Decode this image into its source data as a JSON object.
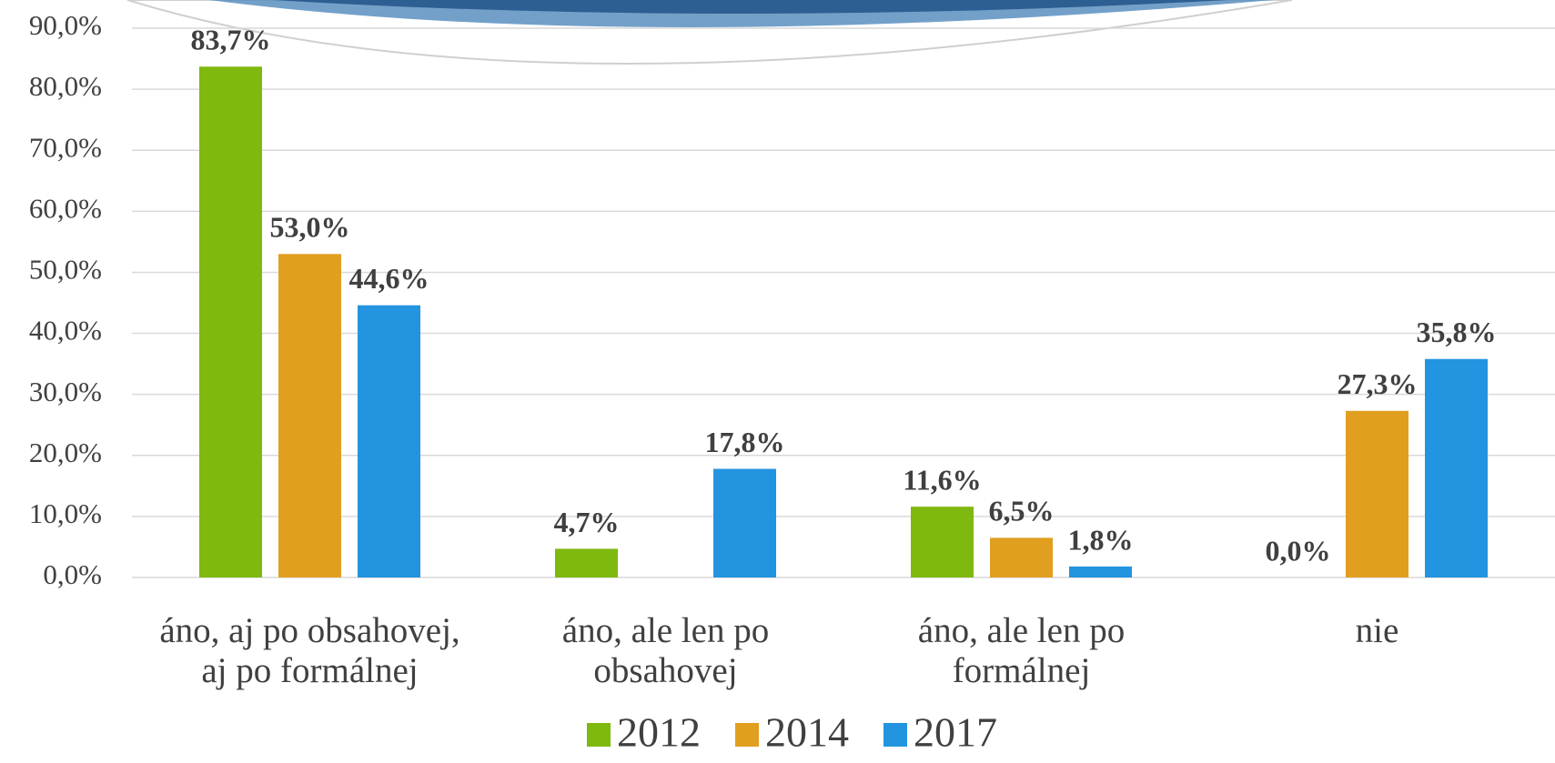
{
  "chart_data": {
    "type": "bar",
    "categories": [
      [
        "áno, aj po obsahovej,",
        "aj po formálnej"
      ],
      [
        "áno, ale len po",
        "obsahovej"
      ],
      [
        "áno, ale len po",
        "formálnej"
      ],
      [
        "nie"
      ]
    ],
    "series": [
      {
        "name": "2012",
        "color": "#7fb80e",
        "values": [
          83.7,
          4.7,
          11.6,
          0.0
        ],
        "value_labels": [
          "83,7%",
          "4,7%",
          "11,6%",
          "0,0%"
        ]
      },
      {
        "name": "2014",
        "color": "#e19f20",
        "values": [
          53.0,
          null,
          6.5,
          27.3
        ],
        "value_labels": [
          "53,0%",
          null,
          "6,5%",
          "27,3%"
        ]
      },
      {
        "name": "2017",
        "color": "#2394df",
        "values": [
          44.6,
          17.8,
          1.8,
          35.8
        ],
        "value_labels": [
          "44,6%",
          "17,8%",
          "1,8%",
          "35,8%"
        ]
      }
    ],
    "ylim": [
      0,
      90
    ],
    "yticks": [
      {
        "value": 0,
        "label": "0,0%"
      },
      {
        "value": 10,
        "label": "10,0%"
      },
      {
        "value": 20,
        "label": "20,0%"
      },
      {
        "value": 30,
        "label": "30,0%"
      },
      {
        "value": 40,
        "label": "40,0%"
      },
      {
        "value": 50,
        "label": "50,0%"
      },
      {
        "value": 60,
        "label": "60,0%"
      },
      {
        "value": 70,
        "label": "70,0%"
      },
      {
        "value": 80,
        "label": "80,0%"
      },
      {
        "value": 90,
        "label": "90,0%"
      }
    ],
    "grid": true,
    "legend": "bottom"
  }
}
